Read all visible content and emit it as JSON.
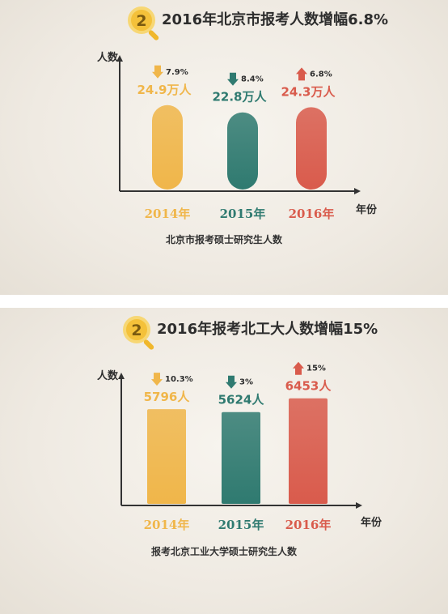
{
  "chart_data": [
    {
      "type": "bar",
      "title": "2016年北京市报考人数增幅6.8%",
      "badge": "2",
      "ylabel": "人数",
      "xlabel": "年份",
      "caption": "北京市报考硕士研究生人数",
      "categories": [
        "2014年",
        "2015年",
        "2016年"
      ],
      "values": [
        24.9,
        22.8,
        24.3
      ],
      "value_labels": [
        "24.9万人",
        "22.8万人",
        "24.3万人"
      ],
      "changes": [
        "7.9%",
        "8.4%",
        "6.8%"
      ],
      "directions": [
        "down",
        "down",
        "up"
      ],
      "colors": [
        "#f0b64a",
        "#2f7a70",
        "#d95b4c"
      ],
      "ylim": [
        0,
        30
      ]
    },
    {
      "type": "bar",
      "title": "2016年报考北工大人数增幅15%",
      "badge": "2",
      "ylabel": "人数",
      "xlabel": "年份",
      "caption": "报考北京工业大学硕士研究生人数",
      "categories": [
        "2014年",
        "2015年",
        "2016年"
      ],
      "values": [
        5796,
        5624,
        6453
      ],
      "value_labels": [
        "5796人",
        "5624人",
        "6453人"
      ],
      "changes": [
        "10.3%",
        "3%",
        "15%"
      ],
      "directions": [
        "down",
        "down",
        "up"
      ],
      "colors": [
        "#f0b64a",
        "#2f7a70",
        "#d95b4c"
      ],
      "ylim": [
        0,
        8000
      ]
    }
  ]
}
